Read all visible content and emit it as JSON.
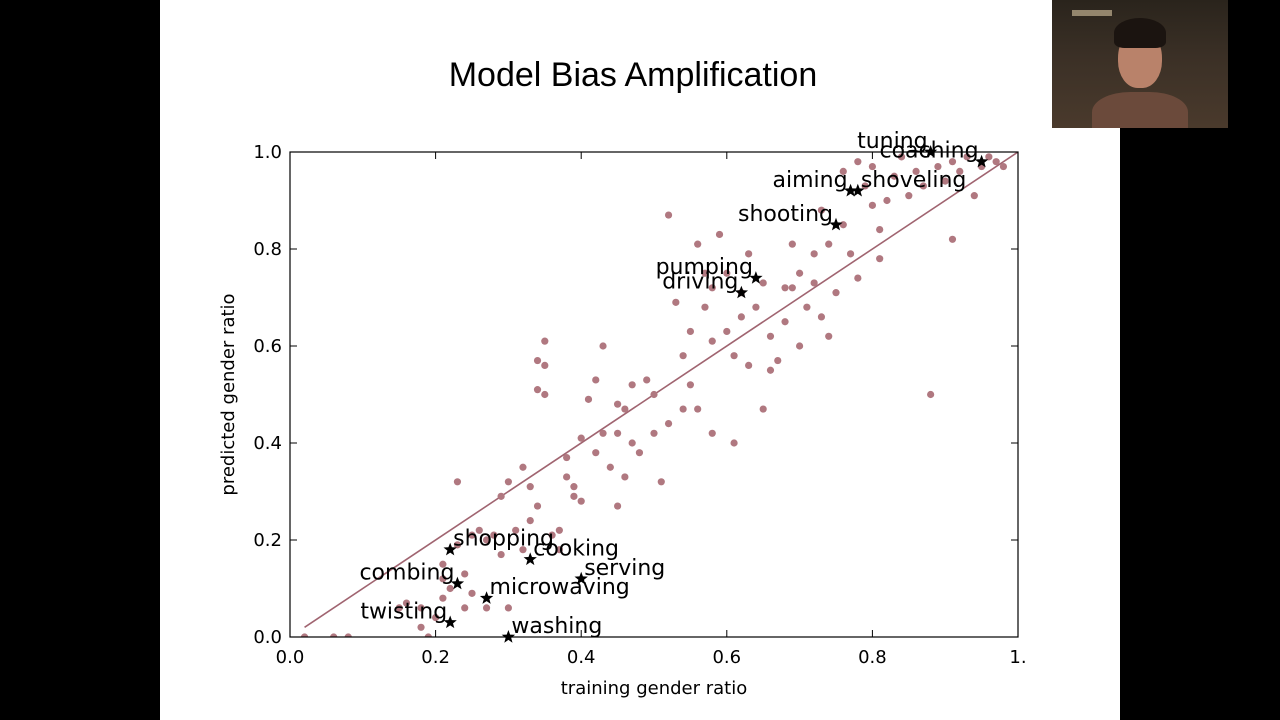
{
  "slide": {
    "title": "Model Bias Amplification"
  },
  "webcam": {
    "icon": "webcam-person-icon"
  },
  "colors": {
    "point": "#b07880",
    "line": "#a06470",
    "star": "#000000",
    "background": "#ffffff",
    "letterbox": "#000000"
  },
  "chart_data": {
    "type": "scatter",
    "xlabel": "training gender ratio",
    "ylabel": "predicted gender ratio",
    "xlim": [
      0.0,
      1.0
    ],
    "ylim": [
      0.0,
      1.0
    ],
    "xticks": [
      "0.0",
      "0.2",
      "0.4",
      "0.6",
      "0.8",
      "1."
    ],
    "xtick_values": [
      0.0,
      0.2,
      0.4,
      0.6,
      0.8,
      1.0
    ],
    "yticks": [
      "0.0",
      "0.2",
      "0.4",
      "0.6",
      "0.8",
      "1.0"
    ],
    "ytick_values": [
      0.0,
      0.2,
      0.4,
      0.6,
      0.8,
      1.0
    ],
    "grid": false,
    "trend_line": [
      [
        0.02,
        0.02
      ],
      [
        1.0,
        1.0
      ]
    ],
    "points": [
      [
        0.02,
        0.0
      ],
      [
        0.06,
        0.0
      ],
      [
        0.08,
        0.0
      ],
      [
        0.15,
        0.06
      ],
      [
        0.16,
        0.07
      ],
      [
        0.18,
        0.06
      ],
      [
        0.18,
        0.02
      ],
      [
        0.19,
        0.0
      ],
      [
        0.2,
        0.04
      ],
      [
        0.21,
        0.08
      ],
      [
        0.21,
        0.12
      ],
      [
        0.21,
        0.15
      ],
      [
        0.22,
        0.1
      ],
      [
        0.23,
        0.32
      ],
      [
        0.23,
        0.19
      ],
      [
        0.24,
        0.13
      ],
      [
        0.24,
        0.06
      ],
      [
        0.25,
        0.09
      ],
      [
        0.25,
        0.21
      ],
      [
        0.26,
        0.22
      ],
      [
        0.27,
        0.2
      ],
      [
        0.28,
        0.21
      ],
      [
        0.29,
        0.17
      ],
      [
        0.29,
        0.29
      ],
      [
        0.3,
        0.06
      ],
      [
        0.3,
        0.32
      ],
      [
        0.31,
        0.22
      ],
      [
        0.32,
        0.35
      ],
      [
        0.32,
        0.18
      ],
      [
        0.33,
        0.24
      ],
      [
        0.33,
        0.31
      ],
      [
        0.34,
        0.57
      ],
      [
        0.34,
        0.51
      ],
      [
        0.35,
        0.61
      ],
      [
        0.35,
        0.56
      ],
      [
        0.35,
        0.5
      ],
      [
        0.34,
        0.27
      ],
      [
        0.36,
        0.21
      ],
      [
        0.37,
        0.18
      ],
      [
        0.37,
        0.22
      ],
      [
        0.38,
        0.33
      ],
      [
        0.38,
        0.37
      ],
      [
        0.39,
        0.29
      ],
      [
        0.39,
        0.31
      ],
      [
        0.4,
        0.41
      ],
      [
        0.41,
        0.49
      ],
      [
        0.42,
        0.53
      ],
      [
        0.43,
        0.6
      ],
      [
        0.42,
        0.38
      ],
      [
        0.43,
        0.42
      ],
      [
        0.44,
        0.35
      ],
      [
        0.45,
        0.48
      ],
      [
        0.45,
        0.42
      ],
      [
        0.46,
        0.47
      ],
      [
        0.46,
        0.33
      ],
      [
        0.47,
        0.4
      ],
      [
        0.48,
        0.38
      ],
      [
        0.49,
        0.53
      ],
      [
        0.5,
        0.5
      ],
      [
        0.5,
        0.42
      ],
      [
        0.51,
        0.32
      ],
      [
        0.52,
        0.44
      ],
      [
        0.52,
        0.87
      ],
      [
        0.53,
        0.69
      ],
      [
        0.54,
        0.58
      ],
      [
        0.55,
        0.63
      ],
      [
        0.55,
        0.52
      ],
      [
        0.56,
        0.47
      ],
      [
        0.56,
        0.81
      ],
      [
        0.57,
        0.75
      ],
      [
        0.57,
        0.68
      ],
      [
        0.58,
        0.72
      ],
      [
        0.58,
        0.42
      ],
      [
        0.59,
        0.83
      ],
      [
        0.6,
        0.75
      ],
      [
        0.6,
        0.63
      ],
      [
        0.61,
        0.58
      ],
      [
        0.61,
        0.4
      ],
      [
        0.62,
        0.71
      ],
      [
        0.63,
        0.56
      ],
      [
        0.63,
        0.79
      ],
      [
        0.64,
        0.68
      ],
      [
        0.65,
        0.73
      ],
      [
        0.65,
        0.47
      ],
      [
        0.66,
        0.62
      ],
      [
        0.67,
        0.57
      ],
      [
        0.68,
        0.65
      ],
      [
        0.68,
        0.72
      ],
      [
        0.69,
        0.81
      ],
      [
        0.7,
        0.75
      ],
      [
        0.7,
        0.6
      ],
      [
        0.71,
        0.68
      ],
      [
        0.72,
        0.79
      ],
      [
        0.72,
        0.73
      ],
      [
        0.73,
        0.66
      ],
      [
        0.73,
        0.88
      ],
      [
        0.74,
        0.81
      ],
      [
        0.74,
        0.62
      ],
      [
        0.75,
        0.71
      ],
      [
        0.76,
        0.85
      ],
      [
        0.76,
        0.96
      ],
      [
        0.77,
        0.79
      ],
      [
        0.78,
        0.98
      ],
      [
        0.78,
        0.74
      ],
      [
        0.79,
        0.93
      ],
      [
        0.8,
        0.89
      ],
      [
        0.8,
        0.97
      ],
      [
        0.81,
        0.84
      ],
      [
        0.82,
        0.9
      ],
      [
        0.83,
        0.95
      ],
      [
        0.84,
        0.99
      ],
      [
        0.85,
        0.91
      ],
      [
        0.86,
        0.96
      ],
      [
        0.87,
        0.93
      ],
      [
        0.88,
        0.5
      ],
      [
        0.89,
        0.97
      ],
      [
        0.9,
        0.94
      ],
      [
        0.91,
        0.98
      ],
      [
        0.91,
        0.82
      ],
      [
        0.92,
        0.96
      ],
      [
        0.93,
        0.99
      ],
      [
        0.94,
        0.91
      ],
      [
        0.95,
        0.97
      ],
      [
        0.96,
        0.99
      ],
      [
        0.97,
        0.98
      ],
      [
        0.98,
        0.97
      ],
      [
        0.81,
        0.78
      ],
      [
        0.66,
        0.55
      ],
      [
        0.58,
        0.61
      ],
      [
        0.47,
        0.52
      ],
      [
        0.4,
        0.28
      ],
      [
        0.27,
        0.06
      ],
      [
        0.45,
        0.27
      ],
      [
        0.62,
        0.66
      ],
      [
        0.54,
        0.47
      ],
      [
        0.69,
        0.72
      ]
    ],
    "annotations": [
      {
        "label": "twisting",
        "x": 0.22,
        "y": 0.03,
        "anchor": "end"
      },
      {
        "label": "washing",
        "x": 0.3,
        "y": 0.0,
        "anchor": "start"
      },
      {
        "label": "microwaving",
        "x": 0.27,
        "y": 0.08,
        "anchor": "start"
      },
      {
        "label": "combing",
        "x": 0.23,
        "y": 0.11,
        "anchor": "end"
      },
      {
        "label": "serving",
        "x": 0.4,
        "y": 0.12,
        "anchor": "start"
      },
      {
        "label": "cooking",
        "x": 0.33,
        "y": 0.16,
        "anchor": "start"
      },
      {
        "label": "shopping",
        "x": 0.22,
        "y": 0.18,
        "anchor": "start"
      },
      {
        "label": "driving",
        "x": 0.62,
        "y": 0.71,
        "anchor": "end"
      },
      {
        "label": "pumping",
        "x": 0.64,
        "y": 0.74,
        "anchor": "end"
      },
      {
        "label": "shooting",
        "x": 0.75,
        "y": 0.85,
        "anchor": "end"
      },
      {
        "label": "aiming",
        "x": 0.77,
        "y": 0.92,
        "anchor": "end"
      },
      {
        "label": "shoveling",
        "x": 0.78,
        "y": 0.92,
        "anchor": "start"
      },
      {
        "label": "tuning",
        "x": 0.88,
        "y": 1.0,
        "anchor": "end"
      },
      {
        "label": "coaching",
        "x": 0.95,
        "y": 0.98,
        "anchor": "end"
      }
    ]
  }
}
